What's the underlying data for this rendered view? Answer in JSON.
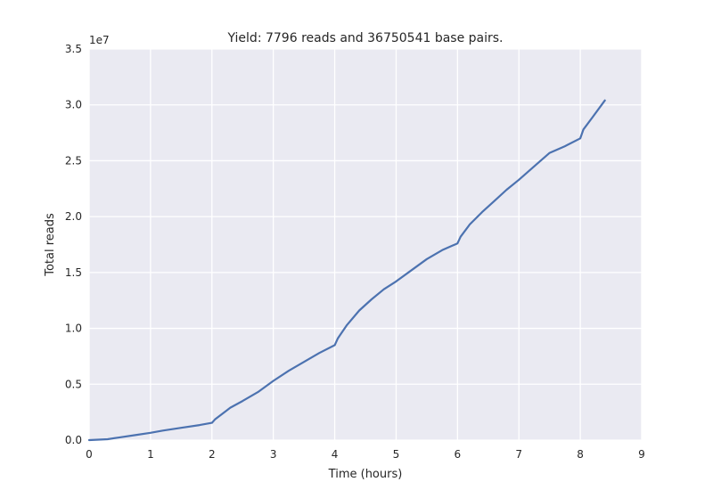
{
  "chart_data": {
    "type": "line",
    "title": "Yield: 7796 reads and 36750541 base pairs.",
    "xlabel": "Time (hours)",
    "ylabel": "Total reads",
    "y_offset_label": "1e7",
    "y_scale_factor": 10000000,
    "xlim": [
      0,
      9
    ],
    "ylim": [
      0,
      35000000
    ],
    "x_ticks": [
      0,
      1,
      2,
      3,
      4,
      5,
      6,
      7,
      8,
      9
    ],
    "x_tick_labels": [
      "0",
      "1",
      "2",
      "3",
      "4",
      "5",
      "6",
      "7",
      "8",
      "9"
    ],
    "y_ticks": [
      0,
      5000000,
      10000000,
      15000000,
      20000000,
      25000000,
      30000000,
      35000000
    ],
    "y_tick_labels": [
      "0.0",
      "0.5",
      "1.0",
      "1.5",
      "2.0",
      "2.5",
      "3.0",
      "3.5"
    ],
    "grid": true,
    "background": "#eaeaf2",
    "grid_color": "#ffffff",
    "series": [
      {
        "color": "#4c72b0",
        "x": [
          0,
          0.3,
          0.5,
          0.75,
          1.0,
          1.2,
          1.5,
          1.8,
          2.0,
          2.05,
          2.3,
          2.5,
          2.75,
          3.0,
          3.25,
          3.5,
          3.75,
          4.0,
          4.05,
          4.2,
          4.4,
          4.6,
          4.8,
          5.0,
          5.25,
          5.5,
          5.75,
          6.0,
          6.05,
          6.2,
          6.4,
          6.6,
          6.8,
          7.0,
          7.25,
          7.5,
          7.75,
          8.0,
          8.05,
          8.2,
          8.4
        ],
        "y": [
          0,
          80000,
          250000,
          450000,
          650000,
          850000,
          1100000,
          1350000,
          1550000,
          1850000,
          2900000,
          3500000,
          4300000,
          5300000,
          6200000,
          7000000,
          7800000,
          8500000,
          9100000,
          10300000,
          11600000,
          12600000,
          13500000,
          14200000,
          15200000,
          16200000,
          17000000,
          17600000,
          18200000,
          19300000,
          20400000,
          21400000,
          22400000,
          23300000,
          24500000,
          25700000,
          26300000,
          27000000,
          27800000,
          28900000,
          30400000
        ]
      }
    ]
  }
}
